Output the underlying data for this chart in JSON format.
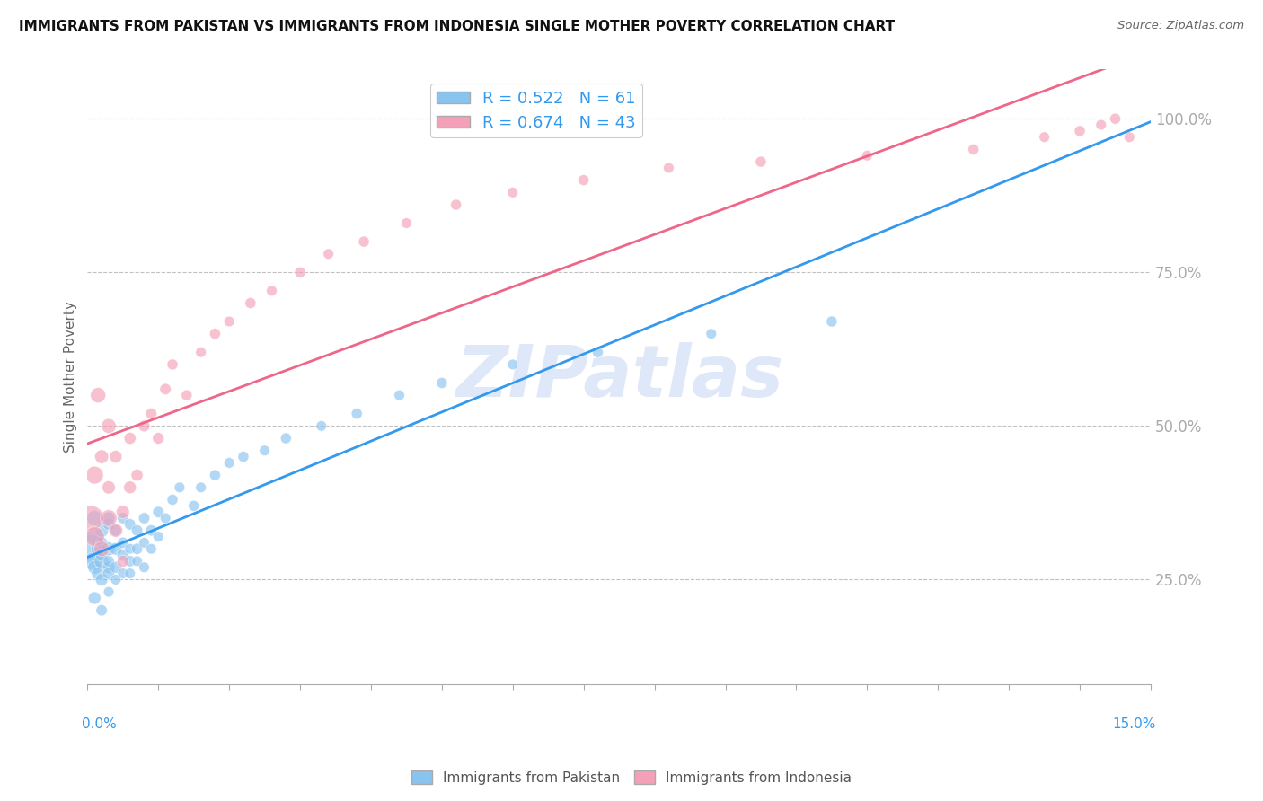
{
  "title": "IMMIGRANTS FROM PAKISTAN VS IMMIGRANTS FROM INDONESIA SINGLE MOTHER POVERTY CORRELATION CHART",
  "source_text": "Source: ZipAtlas.com",
  "ylabel": "Single Mother Poverty",
  "ytick_labels": [
    "25.0%",
    "50.0%",
    "75.0%",
    "100.0%"
  ],
  "ytick_values": [
    0.25,
    0.5,
    0.75,
    1.0
  ],
  "xlim": [
    0.0,
    0.15
  ],
  "ylim": [
    0.08,
    1.08
  ],
  "r_pakistan": 0.522,
  "n_pakistan": 61,
  "r_indonesia": 0.674,
  "n_indonesia": 43,
  "color_pakistan": "#89c4f0",
  "color_indonesia": "#f4a0b8",
  "line_color_pakistan": "#3399ee",
  "line_color_indonesia": "#ee6688",
  "legend_label_pakistan": "Immigrants from Pakistan",
  "legend_label_indonesia": "Immigrants from Indonesia",
  "watermark": "ZIPatlas",
  "watermark_color": "#c8daf4",
  "pakistan_x": [
    0.0005,
    0.0008,
    0.001,
    0.001,
    0.001,
    0.001,
    0.0015,
    0.0015,
    0.002,
    0.002,
    0.002,
    0.002,
    0.002,
    0.002,
    0.003,
    0.003,
    0.003,
    0.003,
    0.003,
    0.003,
    0.003,
    0.004,
    0.004,
    0.004,
    0.004,
    0.005,
    0.005,
    0.005,
    0.005,
    0.006,
    0.006,
    0.006,
    0.006,
    0.007,
    0.007,
    0.007,
    0.008,
    0.008,
    0.008,
    0.009,
    0.009,
    0.01,
    0.01,
    0.011,
    0.012,
    0.013,
    0.015,
    0.016,
    0.018,
    0.02,
    0.022,
    0.025,
    0.028,
    0.033,
    0.038,
    0.044,
    0.05,
    0.06,
    0.072,
    0.088,
    0.105
  ],
  "pakistan_y": [
    0.3,
    0.28,
    0.32,
    0.35,
    0.27,
    0.22,
    0.3,
    0.26,
    0.28,
    0.33,
    0.25,
    0.31,
    0.2,
    0.29,
    0.3,
    0.27,
    0.34,
    0.28,
    0.23,
    0.35,
    0.26,
    0.3,
    0.27,
    0.33,
    0.25,
    0.29,
    0.31,
    0.26,
    0.35,
    0.28,
    0.3,
    0.34,
    0.26,
    0.3,
    0.28,
    0.33,
    0.31,
    0.27,
    0.35,
    0.3,
    0.33,
    0.32,
    0.36,
    0.35,
    0.38,
    0.4,
    0.37,
    0.4,
    0.42,
    0.44,
    0.45,
    0.46,
    0.48,
    0.5,
    0.52,
    0.55,
    0.57,
    0.6,
    0.62,
    0.65,
    0.67
  ],
  "pakistan_size": [
    500,
    200,
    180,
    150,
    120,
    100,
    130,
    110,
    140,
    120,
    100,
    90,
    80,
    100,
    120,
    100,
    90,
    80,
    70,
    100,
    90,
    100,
    90,
    80,
    70,
    90,
    80,
    70,
    80,
    80,
    70,
    80,
    70,
    80,
    70,
    80,
    70,
    70,
    80,
    70,
    80,
    70,
    80,
    70,
    75,
    70,
    75,
    70,
    75,
    70,
    75,
    70,
    75,
    70,
    75,
    70,
    75,
    70,
    75,
    70,
    75
  ],
  "indonesia_x": [
    0.0005,
    0.001,
    0.001,
    0.0015,
    0.002,
    0.002,
    0.003,
    0.003,
    0.003,
    0.004,
    0.004,
    0.005,
    0.005,
    0.006,
    0.006,
    0.007,
    0.008,
    0.009,
    0.01,
    0.011,
    0.012,
    0.014,
    0.016,
    0.018,
    0.02,
    0.023,
    0.026,
    0.03,
    0.034,
    0.039,
    0.045,
    0.052,
    0.06,
    0.07,
    0.082,
    0.095,
    0.11,
    0.125,
    0.135,
    0.14,
    0.143,
    0.145,
    0.147
  ],
  "indonesia_y": [
    0.35,
    0.32,
    0.42,
    0.55,
    0.3,
    0.45,
    0.35,
    0.5,
    0.4,
    0.33,
    0.45,
    0.36,
    0.28,
    0.4,
    0.48,
    0.42,
    0.5,
    0.52,
    0.48,
    0.56,
    0.6,
    0.55,
    0.62,
    0.65,
    0.67,
    0.7,
    0.72,
    0.75,
    0.78,
    0.8,
    0.83,
    0.86,
    0.88,
    0.9,
    0.92,
    0.93,
    0.94,
    0.95,
    0.97,
    0.98,
    0.99,
    1.0,
    0.97
  ],
  "indonesia_size": [
    400,
    250,
    200,
    150,
    150,
    120,
    180,
    140,
    110,
    120,
    100,
    110,
    90,
    100,
    90,
    90,
    85,
    80,
    85,
    80,
    75,
    75,
    70,
    75,
    70,
    75,
    70,
    75,
    70,
    75,
    70,
    75,
    70,
    75,
    70,
    75,
    70,
    75,
    70,
    75,
    70,
    75,
    70
  ]
}
